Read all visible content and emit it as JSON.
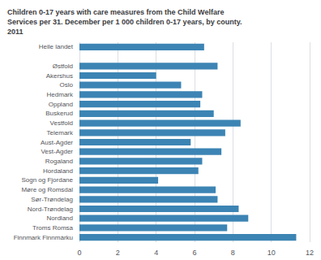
{
  "chart_data": {
    "type": "bar",
    "orientation": "horizontal",
    "title": "Children 0-17 years with care measures from the Child Welfare\nServices per 31. December per 1 000 children 0-17 years, by county.\n2011",
    "categories": [
      "Heile landet",
      null,
      "Østfold",
      "Akershus",
      "Oslo",
      "Hedmark",
      "Oppland",
      "Buskerud",
      "Vestfold",
      "Telemark",
      "Aust-Agder",
      "Vest-Agder",
      "Rogaland",
      "Hordaland",
      "Sogn og Fjordane",
      "Møre og Romsdal",
      "Sør-Trøndelag",
      "Nord-Trøndelag",
      "Nordland",
      "Troms Romsa",
      "Finnmark Finnmárku"
    ],
    "values": [
      6.5,
      0,
      7.2,
      4.0,
      5.3,
      6.4,
      6.3,
      7.0,
      8.4,
      7.6,
      5.8,
      7.4,
      6.4,
      6.2,
      4.1,
      7.1,
      7.2,
      8.3,
      8.8,
      7.7,
      11.3
    ],
    "color": "#3c84b4",
    "xlim": [
      0,
      12
    ],
    "xticks": [
      0,
      2,
      4,
      6,
      8,
      10,
      12
    ],
    "grid": true
  }
}
